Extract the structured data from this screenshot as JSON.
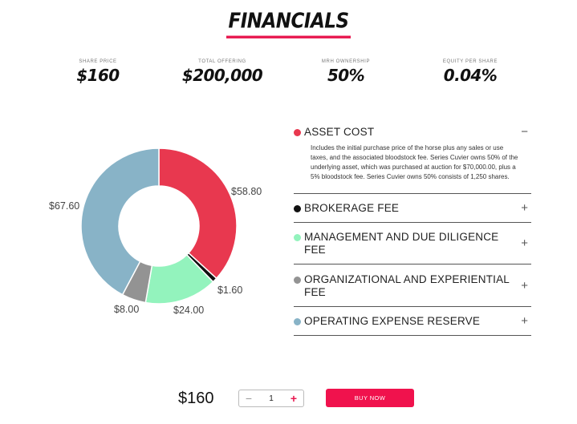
{
  "page": {
    "title": "FINANCIALS"
  },
  "stats": [
    {
      "label": "SHARE PRICE",
      "value": "$160"
    },
    {
      "label": "TOTAL OFFERING",
      "value": "$200,000"
    },
    {
      "label": "MRH OWNERSHIP",
      "value": "50%"
    },
    {
      "label": "EQUITY PER SHARE",
      "value": "0.04%"
    }
  ],
  "chart_data": {
    "type": "pie",
    "categories": [
      "Asset Cost",
      "Brokerage Fee",
      "Management and Due Diligence Fee",
      "Organizational and Experiential Fee",
      "Operating Expense Reserve"
    ],
    "values": [
      58.8,
      1.6,
      24.0,
      8.0,
      67.6
    ],
    "labels": [
      "$58.80",
      "$1.60",
      "$24.00",
      "$8.00",
      "$67.60"
    ],
    "colors": [
      "#e8384f",
      "#111111",
      "#93f3bd",
      "#939393",
      "#88b3c7"
    ],
    "donut": true
  },
  "accordion": [
    {
      "title": "ASSET COST",
      "color": "#e8384f",
      "expanded": true,
      "sign": "−",
      "body": "Includes the initial purchase price of the horse plus any sales or use taxes, and the associated bloodstock fee. Series Cuvier owns 50% of the underlying asset, which was purchased at auction for $70,000.00, plus a 5% bloodstock fee. Series Cuvier owns 50% consists of 1,250 shares."
    },
    {
      "title": "BROKERAGE FEE",
      "color": "#111111",
      "expanded": false,
      "sign": "+"
    },
    {
      "title": "MANAGEMENT AND DUE DILIGENCE FEE",
      "color": "#93f3bd",
      "expanded": false,
      "sign": "+"
    },
    {
      "title": "ORGANIZATIONAL AND EXPERIENTIAL FEE",
      "color": "#939393",
      "expanded": false,
      "sign": "+"
    },
    {
      "title": "OPERATING EXPENSE RESERVE",
      "color": "#88b3c7",
      "expanded": false,
      "sign": "+"
    }
  ],
  "purchase": {
    "price": "$160",
    "quantity": "1",
    "minus": "−",
    "plus": "+",
    "buy_label": "BUY NOW"
  }
}
